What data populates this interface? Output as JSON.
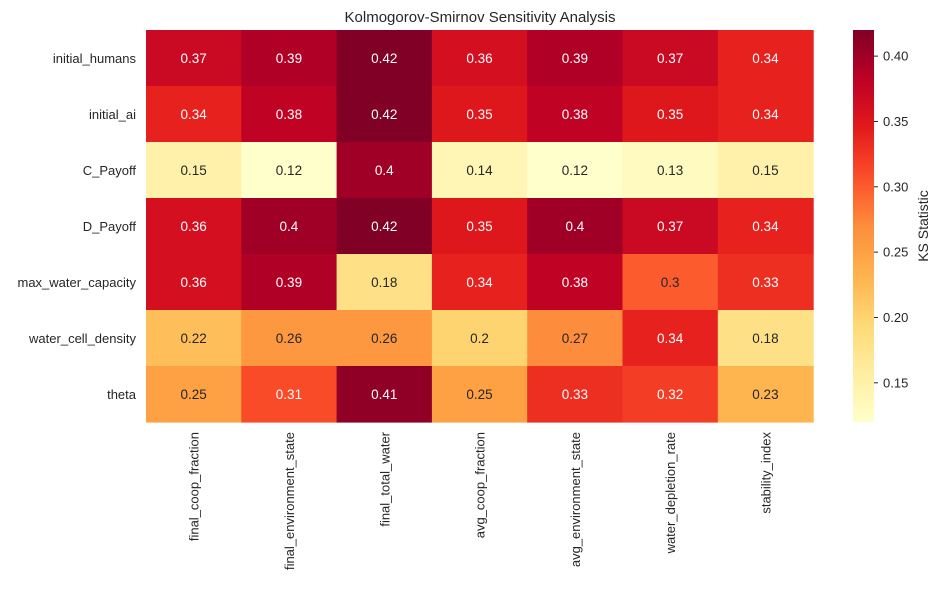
{
  "chart_data": {
    "type": "heatmap",
    "title": "Kolmogorov-Smirnov Sensitivity Analysis",
    "xlabel": "",
    "ylabel": "",
    "rows": [
      "initial_humans",
      "initial_ai",
      "C_Payoff",
      "D_Payoff",
      "max_water_capacity",
      "water_cell_density",
      "theta"
    ],
    "columns": [
      "final_coop_fraction",
      "final_environment_state",
      "final_total_water",
      "avg_coop_fraction",
      "avg_environment_state",
      "water_depletion_rate",
      "stability_index"
    ],
    "values": [
      [
        0.37,
        0.39,
        0.42,
        0.36,
        0.39,
        0.37,
        0.34
      ],
      [
        0.34,
        0.38,
        0.42,
        0.35,
        0.38,
        0.35,
        0.34
      ],
      [
        0.15,
        0.12,
        0.4,
        0.14,
        0.12,
        0.13,
        0.15
      ],
      [
        0.36,
        0.4,
        0.42,
        0.35,
        0.4,
        0.37,
        0.34
      ],
      [
        0.36,
        0.39,
        0.18,
        0.34,
        0.38,
        0.3,
        0.33
      ],
      [
        0.22,
        0.26,
        0.26,
        0.2,
        0.27,
        0.34,
        0.18
      ],
      [
        0.25,
        0.31,
        0.41,
        0.25,
        0.33,
        0.32,
        0.23
      ]
    ],
    "colormap": "YlOrRd",
    "vmin": 0.12,
    "vmax": 0.42,
    "colorbar": {
      "label": "KS Statistic",
      "ticks": [
        0.15,
        0.2,
        0.25,
        0.3,
        0.35,
        0.4
      ],
      "tick_labels": [
        "0.15",
        "0.20",
        "0.25",
        "0.30",
        "0.35",
        "0.40"
      ]
    },
    "annotations": true,
    "grid": false
  }
}
